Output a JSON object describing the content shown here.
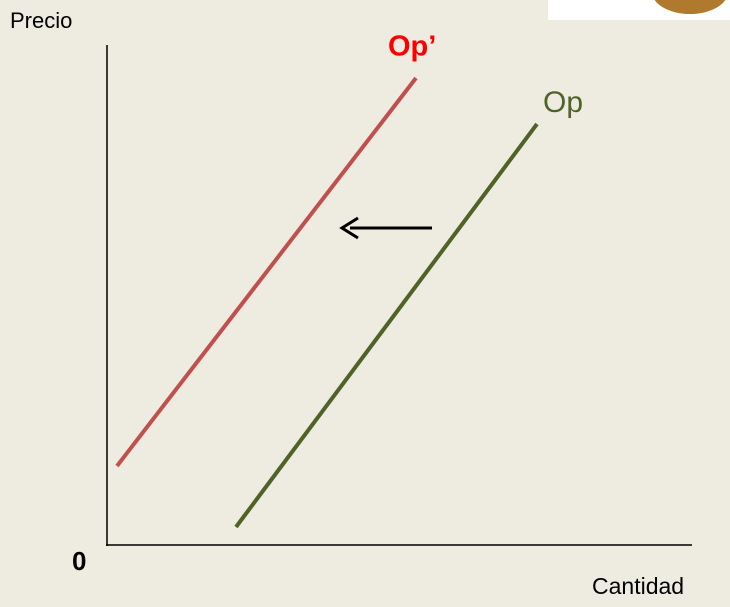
{
  "axes": {
    "y_label": "Precio",
    "x_label": "Cantidad",
    "origin": "0"
  },
  "curves": [
    {
      "label": "Op’",
      "color": "#ff0000"
    },
    {
      "label": "Op",
      "color": "#4f6228"
    }
  ]
}
